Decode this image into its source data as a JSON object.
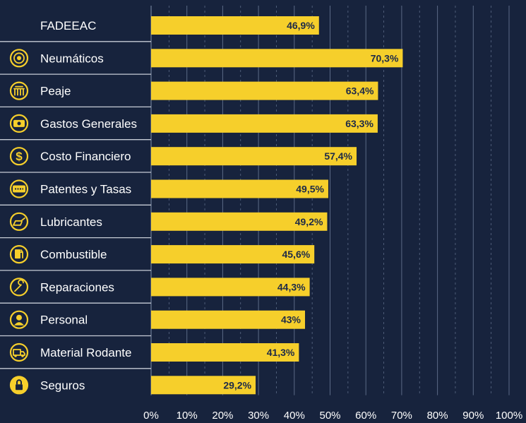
{
  "chart_data": {
    "type": "bar",
    "orientation": "horizontal",
    "categories": [
      "FADEEAC",
      "Neumáticos",
      "Peaje",
      "Gastos Generales",
      "Costo Financiero",
      "Patentes y Tasas",
      "Lubricantes",
      "Combustible",
      "Reparaciones",
      "Personal",
      "Material Rodante",
      "Seguros"
    ],
    "values": [
      46.9,
      70.3,
      63.4,
      63.3,
      57.4,
      49.5,
      49.2,
      45.6,
      44.3,
      43,
      41.3,
      29.2
    ],
    "value_labels": [
      "46,9%",
      "70,3%",
      "63,4%",
      "63,3%",
      "57,4%",
      "49,5%",
      "49,2%",
      "45,6%",
      "44,3%",
      "43%",
      "41,3%",
      "29,2%"
    ],
    "icons": [
      "",
      "tire-icon",
      "toll-booth-icon",
      "cash-icon",
      "dollar-icon",
      "license-plate-icon",
      "oil-can-icon",
      "fuel-pump-icon",
      "wrench-icon",
      "person-icon",
      "truck-icon",
      "lock-icon"
    ],
    "x_ticks": [
      "0%",
      "10%",
      "20%",
      "30%",
      "40%",
      "50%",
      "60%",
      "70%",
      "80%",
      "90%",
      "100%"
    ],
    "xlim": [
      0,
      100
    ],
    "grid": true,
    "title": "",
    "xlabel": "",
    "ylabel": "",
    "colors": {
      "background": "#17233d",
      "bar": "#f6cf2b",
      "bar_label": "#1d2a48",
      "text": "#ffffff",
      "icon": "#f6cf2b",
      "grid": "#5b6a86"
    }
  }
}
